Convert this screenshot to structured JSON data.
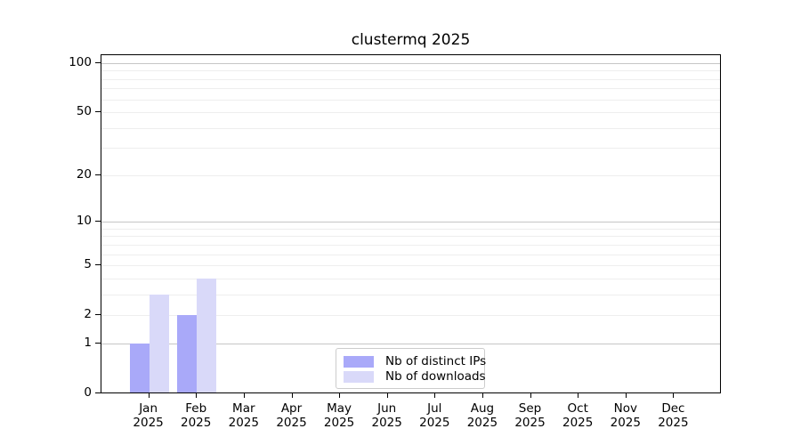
{
  "page": {
    "background": "#ffffff"
  },
  "chart_data": {
    "type": "bar",
    "title": "clustermq 2025",
    "year": "2025",
    "months": [
      "Jan",
      "Feb",
      "Mar",
      "Apr",
      "May",
      "Jun",
      "Jul",
      "Aug",
      "Sep",
      "Oct",
      "Nov",
      "Dec"
    ],
    "series": [
      {
        "name": "Nb of distinct IPs",
        "color": "#a9a9f9",
        "values": [
          1,
          2,
          0,
          0,
          0,
          0,
          0,
          0,
          0,
          0,
          0,
          0
        ]
      },
      {
        "name": "Nb of downloads",
        "color": "#d9d9f9",
        "values": [
          3,
          4,
          0,
          0,
          0,
          0,
          0,
          0,
          0,
          0,
          0,
          0
        ]
      }
    ],
    "y_axis": {
      "scale": "log1p",
      "tick_labels": [
        0,
        1,
        2,
        5,
        10,
        20,
        50,
        100
      ],
      "max_value": 100,
      "emphasized_gridlines": [
        1,
        10,
        100
      ],
      "minor_gridlines": [
        2,
        3,
        4,
        5,
        6,
        7,
        8,
        9,
        20,
        30,
        40,
        50,
        60,
        70,
        80,
        90
      ]
    },
    "x_axis": {
      "label_format": "month over year"
    },
    "legend": {
      "position": "bottom-center"
    },
    "colors": {
      "major_grid": "#c6c6c6",
      "minor_grid": "#eeeeee",
      "spine": "#000000",
      "text": "#000000",
      "background": "#ffffff"
    },
    "grid": true
  }
}
